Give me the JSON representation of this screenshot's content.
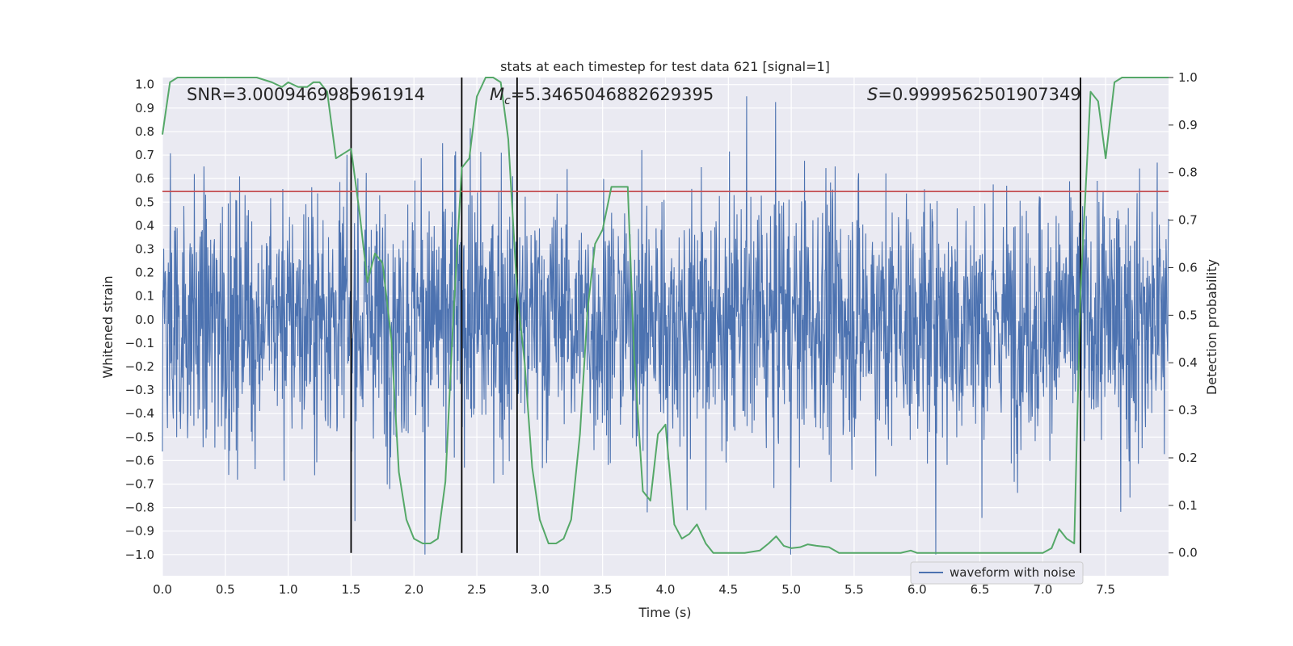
{
  "chart_data": {
    "type": "line",
    "title": "stats at each timestep for test data 621 [signal=1]",
    "xlabel": "Time (s)",
    "ylabel_left": "Whitened strain",
    "ylabel_right": "Detection probability",
    "xlim": [
      0.0,
      8.0
    ],
    "ylim_left": [
      -1.09,
      1.03
    ],
    "ylim_right": [
      -0.048,
      1.0
    ],
    "x_ticks": [
      "0.0",
      "0.5",
      "1.0",
      "1.5",
      "2.0",
      "2.5",
      "3.0",
      "3.5",
      "4.0",
      "4.5",
      "5.0",
      "5.5",
      "6.0",
      "6.5",
      "7.0",
      "7.5"
    ],
    "y_ticks_left": [
      "1.0",
      "0.9",
      "0.8",
      "0.7",
      "0.6",
      "0.5",
      "0.4",
      "0.3",
      "0.2",
      "0.1",
      "0.0",
      "−0.1",
      "−0.2",
      "−0.3",
      "−0.4",
      "−0.5",
      "−0.6",
      "−0.7",
      "−0.8",
      "−0.9",
      "−1.0"
    ],
    "y_ticks_right": [
      "1.0",
      "0.9",
      "0.8",
      "0.7",
      "0.6",
      "0.5",
      "0.4",
      "0.3",
      "0.2",
      "0.1",
      "0.0"
    ],
    "annotations": {
      "snr": "SNR=3.0009469985961914",
      "mc": "=5.3465046882629395",
      "mc_symbol": "M",
      "mc_sub": "c",
      "s": "=0.9999562501907349",
      "s_symbol": "S"
    },
    "threshold": 0.545,
    "vertical_lines": [
      1.5,
      2.38,
      2.82,
      7.3
    ],
    "waveform": {
      "name": "waveform with noise",
      "color": "#4c72b0",
      "t_range": [
        0.0,
        8.0
      ],
      "typical_amplitude": 0.45,
      "max_abs": 1.0
    },
    "probability": {
      "name": "detection probability",
      "color": "#55a868",
      "x": [
        0.0,
        0.06,
        0.12,
        0.25,
        0.5,
        0.75,
        0.87,
        0.95,
        1.0,
        1.08,
        1.15,
        1.2,
        1.25,
        1.31,
        1.38,
        1.44,
        1.5,
        1.57,
        1.63,
        1.69,
        1.75,
        1.82,
        1.88,
        1.94,
        2.0,
        2.07,
        2.13,
        2.19,
        2.25,
        2.31,
        2.38,
        2.44,
        2.5,
        2.57,
        2.63,
        2.69,
        2.75,
        2.82,
        2.88,
        2.94,
        3.0,
        3.07,
        3.13,
        3.19,
        3.25,
        3.32,
        3.38,
        3.44,
        3.5,
        3.57,
        3.63,
        3.7,
        3.75,
        3.82,
        3.88,
        3.94,
        4.0,
        4.07,
        4.13,
        4.19,
        4.25,
        4.32,
        4.38,
        4.5,
        4.63,
        4.75,
        4.82,
        4.88,
        4.94,
        5.0,
        5.07,
        5.13,
        5.2,
        5.3,
        5.38,
        5.5,
        5.75,
        5.87,
        5.95,
        6.0,
        6.25,
        6.5,
        6.75,
        7.0,
        7.07,
        7.13,
        7.19,
        7.25,
        7.3,
        7.38,
        7.44,
        7.5,
        7.57,
        7.63,
        7.7,
        7.75,
        8.0
      ],
      "y": [
        0.88,
        0.99,
        1.0,
        1.0,
        1.0,
        1.0,
        0.99,
        0.98,
        0.99,
        0.98,
        0.98,
        0.99,
        0.99,
        0.97,
        0.83,
        0.84,
        0.85,
        0.71,
        0.57,
        0.63,
        0.61,
        0.45,
        0.17,
        0.07,
        0.03,
        0.02,
        0.02,
        0.03,
        0.15,
        0.48,
        0.81,
        0.83,
        0.96,
        1.0,
        1.0,
        0.99,
        0.87,
        0.55,
        0.4,
        0.18,
        0.07,
        0.02,
        0.02,
        0.03,
        0.07,
        0.25,
        0.51,
        0.65,
        0.68,
        0.77,
        0.77,
        0.77,
        0.42,
        0.13,
        0.11,
        0.25,
        0.27,
        0.06,
        0.03,
        0.04,
        0.06,
        0.02,
        0.0,
        0.0,
        0.0,
        0.005,
        0.02,
        0.035,
        0.015,
        0.01,
        0.012,
        0.018,
        0.015,
        0.012,
        0.0,
        0.0,
        0.0,
        0.0,
        0.005,
        0.0,
        0.0,
        0.0,
        0.0,
        0.0,
        0.01,
        0.05,
        0.03,
        0.02,
        0.55,
        0.97,
        0.95,
        0.83,
        0.99,
        1.0,
        1.0,
        1.0,
        1.0
      ]
    },
    "legend": {
      "position": "lower-right",
      "entries": [
        "waveform with noise"
      ]
    },
    "colors": {
      "background": "#eaeaf2",
      "grid": "#ffffff",
      "threshold": "#c44e52",
      "vline": "#000000"
    }
  }
}
